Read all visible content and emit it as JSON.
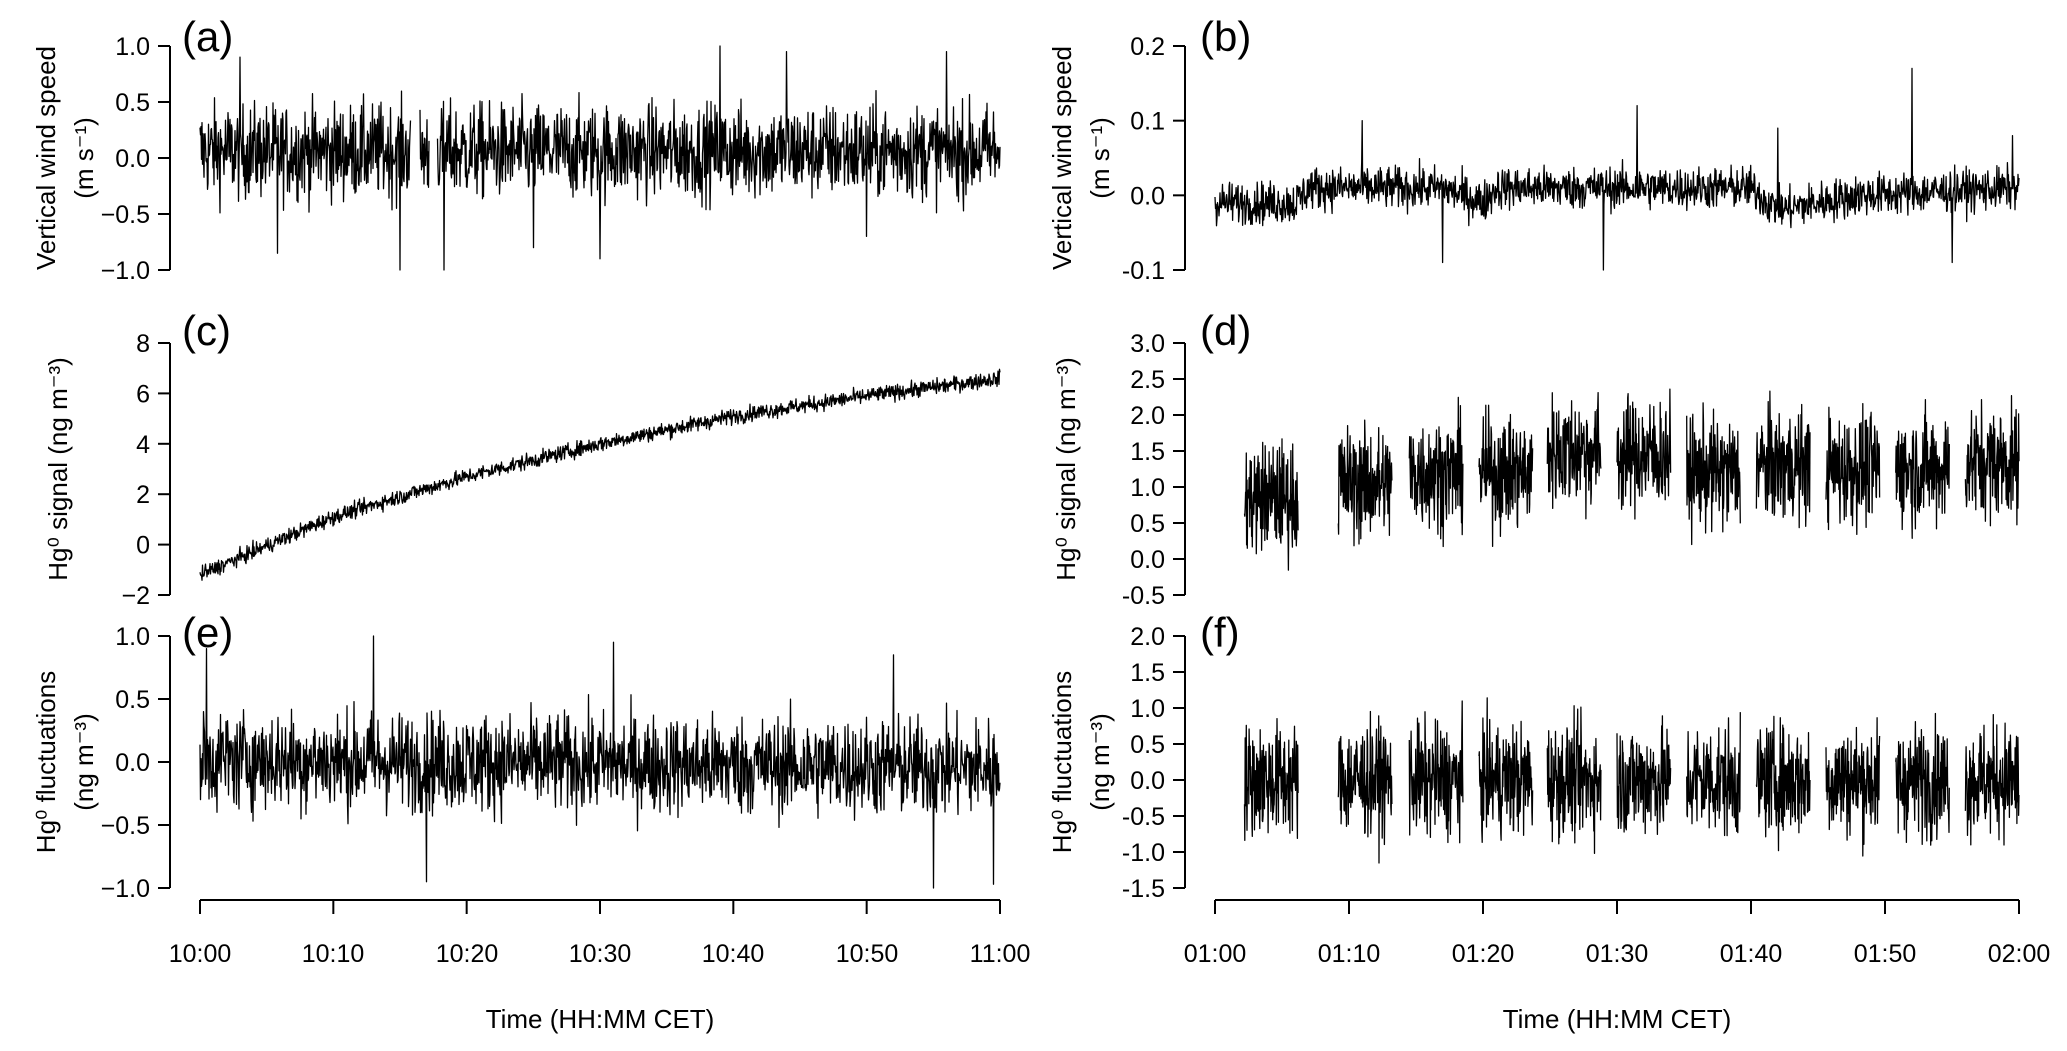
{
  "chart_data": [
    {
      "id": "a",
      "panel_label": "(a)",
      "type": "line",
      "ylabel_lines": [
        "Vertical wind speed",
        "(m s⁻¹)"
      ],
      "ylim": [
        -1.0,
        1.0
      ],
      "yticks": [
        -1.0,
        -0.5,
        0.0,
        0.5,
        1.0
      ],
      "ytick_labels": [
        "−1.0",
        "−0.5",
        "0.0",
        "0.5",
        "1.0"
      ],
      "x_range": [
        "10:00",
        "11:00"
      ],
      "series": [
        {
          "kind": "noise",
          "x_start": 0,
          "x_end": 60,
          "mean": [
            [
              0,
              0.06
            ],
            [
              60,
              0.06
            ]
          ],
          "amplitude": 0.3,
          "spikes": [
            [
              3,
              0.9
            ],
            [
              5.8,
              -0.85
            ],
            [
              15,
              -1.0
            ],
            [
              18.3,
              -1.27
            ],
            [
              25,
              -0.8
            ],
            [
              30,
              -0.9
            ],
            [
              39,
              1.15
            ],
            [
              44,
              0.95
            ],
            [
              50,
              -0.7
            ],
            [
              56,
              0.95
            ]
          ],
          "gaps": [
            [
              15.8,
              16.5
            ],
            [
              17.2,
              17.8
            ]
          ]
        }
      ]
    },
    {
      "id": "b",
      "panel_label": "(b)",
      "type": "line",
      "ylabel_lines": [
        "Vertical wind speed",
        "(m s⁻¹)"
      ],
      "ylim": [
        -0.1,
        0.2
      ],
      "yticks": [
        -0.1,
        0.0,
        0.1,
        0.2
      ],
      "ytick_labels": [
        "-0.1",
        "0.0",
        "0.1",
        "0.2"
      ],
      "x_range": [
        "01:00",
        "02:00"
      ],
      "series": [
        {
          "kind": "noise",
          "x_start": 0,
          "x_end": 60,
          "mean": [
            [
              0,
              -0.01
            ],
            [
              6,
              -0.01
            ],
            [
              7,
              0.01
            ],
            [
              17,
              0.01
            ],
            [
              20,
              -0.01
            ],
            [
              21,
              0.01
            ],
            [
              40,
              0.01
            ],
            [
              42,
              -0.02
            ],
            [
              48,
              0.0
            ],
            [
              60,
              0.01
            ]
          ],
          "amplitude": 0.02,
          "spikes": [
            [
              11,
              0.1
            ],
            [
              17,
              -0.09
            ],
            [
              29,
              -0.1
            ],
            [
              31.5,
              0.12
            ],
            [
              42,
              0.09
            ],
            [
              52,
              0.17
            ],
            [
              55,
              -0.09
            ],
            [
              59.5,
              0.08
            ]
          ],
          "gaps": []
        }
      ]
    },
    {
      "id": "c",
      "panel_label": "(c)",
      "type": "line",
      "ylabel_lines": [
        "Hg⁰ signal (ng m⁻³)"
      ],
      "ylim": [
        -2,
        8
      ],
      "yticks": [
        -2,
        0,
        2,
        4,
        6,
        8
      ],
      "ytick_labels": [
        "−2",
        "0",
        "2",
        "4",
        "6",
        "8"
      ],
      "x_range": [
        "10:00",
        "11:00"
      ],
      "series": [
        {
          "kind": "noise",
          "x_start": 0,
          "x_end": 60,
          "mean": [
            [
              0,
              -1.2
            ],
            [
              10,
              1.1
            ],
            [
              20,
              2.7
            ],
            [
              30,
              4.0
            ],
            [
              40,
              5.1
            ],
            [
              50,
              5.9
            ],
            [
              60,
              6.6
            ]
          ],
          "amplitude": 0.22,
          "spikes": [],
          "gaps": []
        }
      ]
    },
    {
      "id": "d",
      "panel_label": "(d)",
      "type": "line",
      "ylabel_lines": [
        "Hg⁰ signal (ng m⁻³)"
      ],
      "ylim": [
        -0.5,
        3.0
      ],
      "yticks": [
        -0.5,
        0.0,
        0.5,
        1.0,
        1.5,
        2.0,
        2.5,
        3.0
      ],
      "ytick_labels": [
        "-0.5",
        "0.0",
        "0.5",
        "1.0",
        "1.5",
        "2.0",
        "2.5",
        "3.0"
      ],
      "x_range": [
        "01:00",
        "02:00"
      ],
      "series": [
        {
          "kind": "blocks",
          "blocks": [
            [
              2.2,
              6.2,
              0.85
            ],
            [
              9.2,
              13.2,
              1.05
            ],
            [
              14.5,
              18.5,
              1.2
            ],
            [
              19.7,
              23.7,
              1.2
            ],
            [
              24.8,
              28.8,
              1.5
            ],
            [
              30.0,
              34.0,
              1.45
            ],
            [
              35.2,
              39.2,
              1.2
            ],
            [
              40.4,
              44.4,
              1.3
            ],
            [
              45.6,
              49.6,
              1.25
            ],
            [
              50.8,
              54.8,
              1.25
            ],
            [
              56.0,
              60.0,
              1.35
            ]
          ],
          "amplitude": 0.55
        }
      ]
    },
    {
      "id": "e",
      "panel_label": "(e)",
      "type": "line",
      "ylabel_lines": [
        "Hg⁰ fluctuations",
        "(ng m⁻³)"
      ],
      "ylim": [
        -1.0,
        1.0
      ],
      "yticks": [
        -1.0,
        -0.5,
        0.0,
        0.5,
        1.0
      ],
      "ytick_labels": [
        "−1.0",
        "−0.5",
        "0.0",
        "0.5",
        "1.0"
      ],
      "x_range": [
        "10:00",
        "11:00"
      ],
      "series": [
        {
          "kind": "noise",
          "x_start": 0,
          "x_end": 60,
          "mean": [
            [
              0,
              0.02
            ],
            [
              60,
              -0.05
            ]
          ],
          "amplitude": 0.28,
          "spikes": [
            [
              0.5,
              0.9
            ],
            [
              13,
              1.02
            ],
            [
              17,
              -0.95
            ],
            [
              31,
              0.95
            ],
            [
              52,
              0.85
            ],
            [
              55,
              -1.05
            ],
            [
              59.5,
              -0.97
            ]
          ],
          "gaps": []
        }
      ]
    },
    {
      "id": "f",
      "panel_label": "(f)",
      "type": "line",
      "ylabel_lines": [
        "Hg⁰ fluctuations",
        "(ng m⁻³)"
      ],
      "ylim": [
        -1.5,
        2.0
      ],
      "yticks": [
        -1.5,
        -1.0,
        -0.5,
        0.0,
        0.5,
        1.0,
        1.5,
        2.0
      ],
      "ytick_labels": [
        "-1.5",
        "-1.0",
        "-0.5",
        "0.0",
        "0.5",
        "1.0",
        "1.5",
        "2.0"
      ],
      "x_range": [
        "01:00",
        "02:00"
      ],
      "series": [
        {
          "kind": "blocks",
          "blocks": [
            [
              2.2,
              6.2,
              0.0
            ],
            [
              9.2,
              13.2,
              0.0
            ],
            [
              14.5,
              18.5,
              0.0
            ],
            [
              19.7,
              23.7,
              0.0
            ],
            [
              24.8,
              28.8,
              0.0
            ],
            [
              30.0,
              34.0,
              0.0
            ],
            [
              35.2,
              39.2,
              0.0
            ],
            [
              40.4,
              44.4,
              0.0
            ],
            [
              45.6,
              49.6,
              0.0
            ],
            [
              50.8,
              54.8,
              0.0
            ],
            [
              56.0,
              60.0,
              0.0
            ]
          ],
          "amplitude": 0.55
        }
      ]
    }
  ],
  "x_axes": [
    {
      "id": "left",
      "tick_labels": [
        "10:00",
        "10:10",
        "10:20",
        "10:30",
        "10:40",
        "10:50",
        "11:00"
      ],
      "label": "Time (HH:MM CET)"
    },
    {
      "id": "right",
      "tick_labels": [
        "01:00",
        "01:10",
        "01:20",
        "01:30",
        "01:40",
        "01:50",
        "02:00"
      ],
      "label": "Time (HH:MM CET)"
    }
  ]
}
